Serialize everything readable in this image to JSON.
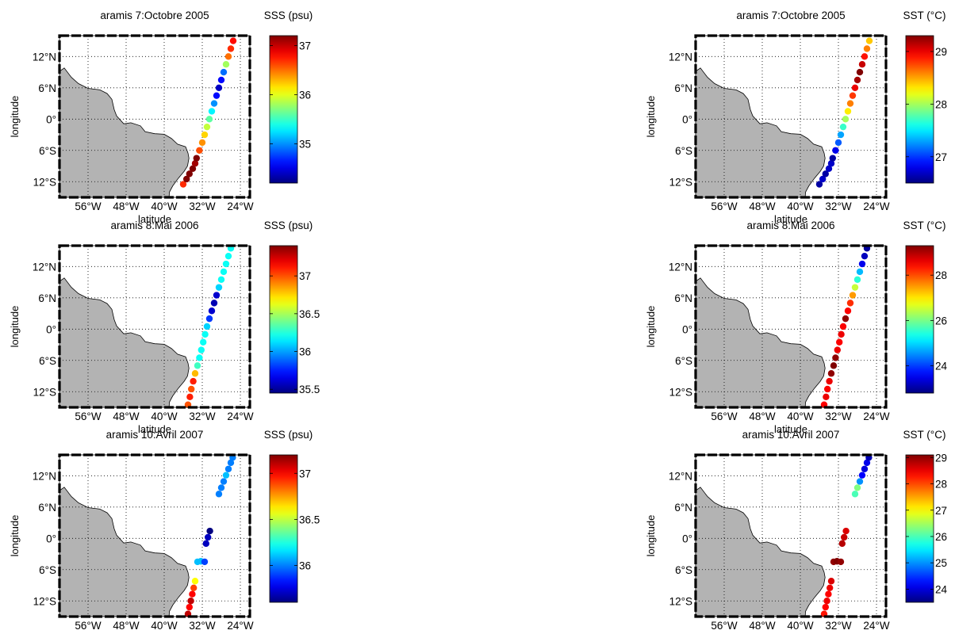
{
  "figure": {
    "background": "#ffffff",
    "land_color": "#b3b3b3",
    "frame_color": "#000000"
  },
  "x_ticks": [
    "56°W",
    "48°W",
    "40°W",
    "32°W",
    "24°W"
  ],
  "y_ticks": [
    "12°N",
    "6°N",
    "0°",
    "6°S",
    "12°S"
  ],
  "chart_data": [
    {
      "type": "scatter",
      "title": "aramis 7:Octobre 2005",
      "xlabel": "latitude",
      "ylabel": "longitude",
      "xlim": [
        -62,
        -22
      ],
      "ylim": [
        -15,
        16
      ],
      "grid": true,
      "colorbar": {
        "label": "SSS (psu)",
        "min": 34.2,
        "max": 37.2,
        "ticks": [
          37,
          36,
          35
        ],
        "tick_labels": [
          "37",
          "36",
          "35"
        ]
      },
      "points": [
        {
          "lon": -36.0,
          "lat": -12.5,
          "v": 36.7
        },
        {
          "lon": -35.3,
          "lat": -11.5,
          "v": 37.2
        },
        {
          "lon": -34.7,
          "lat": -10.5,
          "v": 37.2
        },
        {
          "lon": -34.0,
          "lat": -9.5,
          "v": 37.2
        },
        {
          "lon": -33.5,
          "lat": -8.5,
          "v": 37.1
        },
        {
          "lon": -33.2,
          "lat": -7.5,
          "v": 37.2
        },
        {
          "lon": -32.6,
          "lat": -6.0,
          "v": 36.6
        },
        {
          "lon": -32.0,
          "lat": -4.5,
          "v": 36.4
        },
        {
          "lon": -31.5,
          "lat": -3.0,
          "v": 36.2
        },
        {
          "lon": -31.0,
          "lat": -1.5,
          "v": 35.9
        },
        {
          "lon": -30.5,
          "lat": 0.0,
          "v": 35.6
        },
        {
          "lon": -30.0,
          "lat": 1.5,
          "v": 35.3
        },
        {
          "lon": -29.5,
          "lat": 3.0,
          "v": 35.0
        },
        {
          "lon": -29.0,
          "lat": 4.5,
          "v": 34.6
        },
        {
          "lon": -28.5,
          "lat": 6.0,
          "v": 34.4
        },
        {
          "lon": -28.0,
          "lat": 7.5,
          "v": 34.6
        },
        {
          "lon": -27.5,
          "lat": 9.0,
          "v": 34.9
        },
        {
          "lon": -27.0,
          "lat": 10.5,
          "v": 35.8
        },
        {
          "lon": -26.5,
          "lat": 12.0,
          "v": 36.5
        },
        {
          "lon": -26.0,
          "lat": 13.5,
          "v": 36.7
        },
        {
          "lon": -25.5,
          "lat": 15.0,
          "v": 36.8
        }
      ]
    },
    {
      "type": "scatter",
      "title": "aramis 7:Octobre 2005",
      "xlabel": "latitude",
      "ylabel": "longitude",
      "xlim": [
        -62,
        -22
      ],
      "ylim": [
        -15,
        16
      ],
      "grid": true,
      "colorbar": {
        "label": "SST (°C)",
        "min": 26.5,
        "max": 29.3,
        "ticks": [
          29,
          28,
          27
        ],
        "tick_labels": [
          "29",
          "28",
          "27"
        ]
      },
      "points": [
        {
          "lon": -36.0,
          "lat": -12.5,
          "v": 26.6
        },
        {
          "lon": -35.3,
          "lat": -11.5,
          "v": 26.7
        },
        {
          "lon": -34.7,
          "lat": -10.5,
          "v": 26.6
        },
        {
          "lon": -34.0,
          "lat": -9.5,
          "v": 26.7
        },
        {
          "lon": -33.5,
          "lat": -8.5,
          "v": 26.7
        },
        {
          "lon": -33.2,
          "lat": -7.5,
          "v": 26.6
        },
        {
          "lon": -32.6,
          "lat": -6.0,
          "v": 26.8
        },
        {
          "lon": -32.0,
          "lat": -4.5,
          "v": 27.1
        },
        {
          "lon": -31.5,
          "lat": -3.0,
          "v": 27.3
        },
        {
          "lon": -31.0,
          "lat": -1.5,
          "v": 27.7
        },
        {
          "lon": -30.5,
          "lat": 0.0,
          "v": 28.0
        },
        {
          "lon": -30.0,
          "lat": 1.5,
          "v": 28.3
        },
        {
          "lon": -29.5,
          "lat": 3.0,
          "v": 28.6
        },
        {
          "lon": -29.0,
          "lat": 4.5,
          "v": 28.8
        },
        {
          "lon": -28.5,
          "lat": 6.0,
          "v": 29.0
        },
        {
          "lon": -28.0,
          "lat": 7.5,
          "v": 29.2
        },
        {
          "lon": -27.5,
          "lat": 9.0,
          "v": 29.3
        },
        {
          "lon": -27.0,
          "lat": 10.5,
          "v": 29.1
        },
        {
          "lon": -26.5,
          "lat": 12.0,
          "v": 28.9
        },
        {
          "lon": -26.0,
          "lat": 13.5,
          "v": 28.6
        },
        {
          "lon": -25.5,
          "lat": 15.0,
          "v": 28.4
        }
      ]
    },
    {
      "type": "scatter",
      "title": "aramis 8:Mai 2006",
      "xlabel": "latitude",
      "ylabel": "longitude",
      "xlim": [
        -62,
        -22
      ],
      "ylim": [
        -15,
        16
      ],
      "grid": true,
      "colorbar": {
        "label": "SSS (psu)",
        "min": 35.45,
        "max": 37.4,
        "ticks": [
          37,
          36.5,
          36,
          35.5
        ],
        "tick_labels": [
          "37",
          "36.5",
          "36",
          "35.5"
        ]
      },
      "points": [
        {
          "lon": -35.0,
          "lat": -14.5,
          "v": 37.0
        },
        {
          "lon": -34.6,
          "lat": -13.0,
          "v": 37.1
        },
        {
          "lon": -34.3,
          "lat": -11.5,
          "v": 37.0
        },
        {
          "lon": -33.9,
          "lat": -10.0,
          "v": 37.1
        },
        {
          "lon": -33.5,
          "lat": -8.5,
          "v": 36.8
        },
        {
          "lon": -33.0,
          "lat": -7.0,
          "v": 36.3
        },
        {
          "lon": -32.6,
          "lat": -5.5,
          "v": 36.2
        },
        {
          "lon": -32.2,
          "lat": -4.0,
          "v": 36.2
        },
        {
          "lon": -31.8,
          "lat": -2.5,
          "v": 36.2
        },
        {
          "lon": -31.4,
          "lat": -1.0,
          "v": 36.2
        },
        {
          "lon": -31.0,
          "lat": 0.5,
          "v": 36.1
        },
        {
          "lon": -30.5,
          "lat": 2.0,
          "v": 35.8
        },
        {
          "lon": -30.0,
          "lat": 3.5,
          "v": 35.6
        },
        {
          "lon": -29.5,
          "lat": 5.0,
          "v": 35.55
        },
        {
          "lon": -29.0,
          "lat": 6.5,
          "v": 35.6
        },
        {
          "lon": -28.5,
          "lat": 8.0,
          "v": 36.1
        },
        {
          "lon": -28.0,
          "lat": 9.5,
          "v": 36.2
        },
        {
          "lon": -27.5,
          "lat": 11.0,
          "v": 36.2
        },
        {
          "lon": -27.0,
          "lat": 12.5,
          "v": 36.2
        },
        {
          "lon": -26.5,
          "lat": 14.0,
          "v": 36.2
        },
        {
          "lon": -26.0,
          "lat": 15.5,
          "v": 36.2
        }
      ]
    },
    {
      "type": "scatter",
      "title": "aramis 8:Mai 2006",
      "xlabel": "latitude",
      "ylabel": "longitude",
      "xlim": [
        -62,
        -22
      ],
      "ylim": [
        -15,
        16
      ],
      "grid": true,
      "colorbar": {
        "label": "SST (°C)",
        "min": 22.8,
        "max": 29.3,
        "ticks": [
          28,
          26,
          24
        ],
        "tick_labels": [
          "28",
          "26",
          "24"
        ]
      },
      "points": [
        {
          "lon": -35.0,
          "lat": -14.5,
          "v": 28.5
        },
        {
          "lon": -34.6,
          "lat": -13.0,
          "v": 28.6
        },
        {
          "lon": -34.3,
          "lat": -11.5,
          "v": 28.5
        },
        {
          "lon": -33.9,
          "lat": -10.0,
          "v": 28.6
        },
        {
          "lon": -33.5,
          "lat": -8.5,
          "v": 29.2
        },
        {
          "lon": -33.0,
          "lat": -7.0,
          "v": 29.3
        },
        {
          "lon": -32.6,
          "lat": -5.5,
          "v": 29.2
        },
        {
          "lon": -32.2,
          "lat": -4.0,
          "v": 28.6
        },
        {
          "lon": -31.8,
          "lat": -2.5,
          "v": 28.5
        },
        {
          "lon": -31.4,
          "lat": -1.0,
          "v": 28.6
        },
        {
          "lon": -31.0,
          "lat": 0.5,
          "v": 28.5
        },
        {
          "lon": -30.5,
          "lat": 2.0,
          "v": 29.2
        },
        {
          "lon": -30.0,
          "lat": 3.5,
          "v": 28.5
        },
        {
          "lon": -29.5,
          "lat": 5.0,
          "v": 28.2
        },
        {
          "lon": -29.0,
          "lat": 6.5,
          "v": 27.5
        },
        {
          "lon": -28.5,
          "lat": 8.0,
          "v": 26.5
        },
        {
          "lon": -28.0,
          "lat": 9.5,
          "v": 25.5
        },
        {
          "lon": -27.5,
          "lat": 11.0,
          "v": 24.8
        },
        {
          "lon": -27.0,
          "lat": 12.5,
          "v": 23.5
        },
        {
          "lon": -26.5,
          "lat": 14.0,
          "v": 23.2
        },
        {
          "lon": -26.0,
          "lat": 15.5,
          "v": 23.0
        }
      ]
    },
    {
      "type": "scatter",
      "title": "aramis 10:Avril 2007",
      "xlabel": "latitude",
      "ylabel": "longitude",
      "xlim": [
        -62,
        -22
      ],
      "ylim": [
        -15,
        16
      ],
      "grid": true,
      "colorbar": {
        "label": "SSS (psu)",
        "min": 35.6,
        "max": 37.2,
        "ticks": [
          37,
          36.5,
          36
        ],
        "tick_labels": [
          "37",
          "36.5",
          "36"
        ]
      },
      "points": [
        {
          "lon": -35.0,
          "lat": -14.5,
          "v": 37.1
        },
        {
          "lon": -34.7,
          "lat": -13.2,
          "v": 37.0
        },
        {
          "lon": -34.4,
          "lat": -12.0,
          "v": 37.1
        },
        {
          "lon": -34.1,
          "lat": -10.7,
          "v": 37.0
        },
        {
          "lon": -33.8,
          "lat": -9.5,
          "v": 36.9
        },
        {
          "lon": -33.5,
          "lat": -8.2,
          "v": 36.6
        },
        {
          "lon": -33.0,
          "lat": -4.5,
          "v": 36.1
        },
        {
          "lon": -32.3,
          "lat": -4.4,
          "v": 36.1
        },
        {
          "lon": -31.5,
          "lat": -4.5,
          "v": 35.9
        },
        {
          "lon": -31.2,
          "lat": -1.0,
          "v": 35.7
        },
        {
          "lon": -30.8,
          "lat": 0.2,
          "v": 35.7
        },
        {
          "lon": -30.4,
          "lat": 1.4,
          "v": 35.6
        },
        {
          "lon": -28.5,
          "lat": 8.5,
          "v": 36.0
        },
        {
          "lon": -28.0,
          "lat": 9.7,
          "v": 36.0
        },
        {
          "lon": -27.5,
          "lat": 10.9,
          "v": 36.0
        },
        {
          "lon": -27.0,
          "lat": 12.1,
          "v": 36.1
        },
        {
          "lon": -26.5,
          "lat": 13.3,
          "v": 36.0
        },
        {
          "lon": -26.0,
          "lat": 14.5,
          "v": 36.0
        },
        {
          "lon": -25.6,
          "lat": 15.5,
          "v": 36.0
        }
      ]
    },
    {
      "type": "scatter",
      "title": "aramis 10:Avril 2007",
      "xlabel": "latitude",
      "ylabel": "longitude",
      "xlim": [
        -62,
        -22
      ],
      "ylim": [
        -15,
        16
      ],
      "grid": true,
      "colorbar": {
        "label": "SST (°C)",
        "min": 23.5,
        "max": 29.1,
        "ticks": [
          29,
          28,
          27,
          26,
          25,
          24
        ],
        "tick_labels": [
          "29",
          "28",
          "27",
          "26",
          "25",
          "24"
        ]
      },
      "points": [
        {
          "lon": -35.0,
          "lat": -14.5,
          "v": 28.3
        },
        {
          "lon": -34.7,
          "lat": -13.2,
          "v": 28.4
        },
        {
          "lon": -34.4,
          "lat": -12.0,
          "v": 28.5
        },
        {
          "lon": -34.1,
          "lat": -10.7,
          "v": 28.4
        },
        {
          "lon": -33.8,
          "lat": -9.5,
          "v": 28.5
        },
        {
          "lon": -33.5,
          "lat": -8.2,
          "v": 28.6
        },
        {
          "lon": -33.0,
          "lat": -4.5,
          "v": 29.0
        },
        {
          "lon": -32.3,
          "lat": -4.4,
          "v": 29.1
        },
        {
          "lon": -31.5,
          "lat": -4.5,
          "v": 29.0
        },
        {
          "lon": -31.2,
          "lat": -1.0,
          "v": 28.8
        },
        {
          "lon": -30.8,
          "lat": 0.2,
          "v": 28.7
        },
        {
          "lon": -30.4,
          "lat": 1.4,
          "v": 28.6
        },
        {
          "lon": -28.5,
          "lat": 8.5,
          "v": 26.0
        },
        {
          "lon": -28.0,
          "lat": 9.7,
          "v": 26.3
        },
        {
          "lon": -27.5,
          "lat": 10.9,
          "v": 25.0
        },
        {
          "lon": -27.0,
          "lat": 12.1,
          "v": 24.2
        },
        {
          "lon": -26.5,
          "lat": 13.3,
          "v": 24.0
        },
        {
          "lon": -26.0,
          "lat": 14.5,
          "v": 24.1
        },
        {
          "lon": -25.6,
          "lat": 15.5,
          "v": 23.8
        }
      ]
    }
  ]
}
